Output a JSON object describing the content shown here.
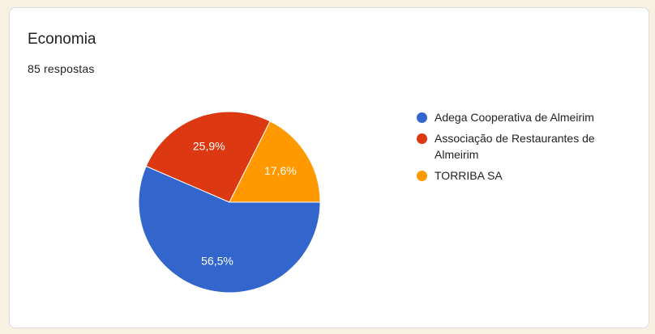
{
  "card": {
    "title": "Economia",
    "responses": "85 respostas"
  },
  "chart_data": {
    "type": "pie",
    "start_angle_deg": 90,
    "direction": "clockwise",
    "legend_position": "right",
    "slices": [
      {
        "name": "Adega Cooperativa de Almeirim",
        "value": 56.5,
        "label": "56,5%",
        "color": "#3366cc"
      },
      {
        "name": "Associação de Restaurantes de Almeirim",
        "value": 25.9,
        "label": "25,9%",
        "color": "#dc3912"
      },
      {
        "name": "TORRIBA SA",
        "value": 17.6,
        "label": "17,6%",
        "color": "#ff9900"
      }
    ]
  }
}
